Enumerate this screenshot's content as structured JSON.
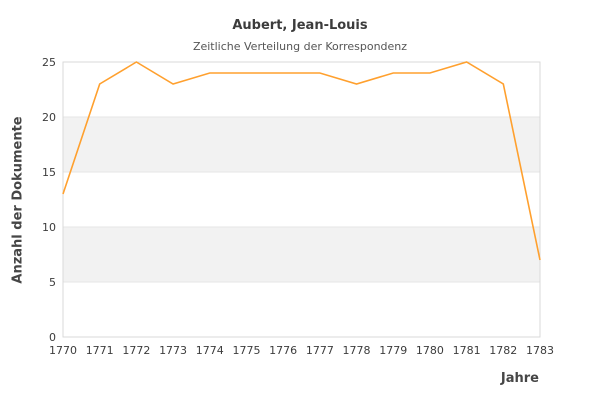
{
  "chart_data": {
    "type": "line",
    "title": "Aubert, Jean-Louis",
    "subtitle": "Zeitliche Verteilung der Korrespondenz",
    "xlabel": "Jahre",
    "ylabel": "Anzahl der Dokumente",
    "categories": [
      "1770",
      "1771",
      "1772",
      "1773",
      "1774",
      "1775",
      "1776",
      "1777",
      "1778",
      "1779",
      "1780",
      "1781",
      "1782",
      "1783"
    ],
    "values": [
      13,
      23,
      25,
      23,
      24,
      24,
      24,
      24,
      23,
      24,
      24,
      25,
      23,
      7
    ],
    "ylim": [
      0,
      25
    ],
    "yticks": [
      0,
      5,
      10,
      15,
      20,
      25
    ],
    "grid": "horizontal",
    "legend": "none",
    "band_pattern": "alternating gray bands between yticks 5-10 and 15-20",
    "colors": {
      "line": "#ffa02e",
      "band": "#f2f2f2",
      "grid": "#e6e6e6",
      "border": "#d9d9d9",
      "title": "#3c3c3c",
      "subtitle": "#555555",
      "tick": "#3c3c3c",
      "axis_title": "#464646",
      "background": "#ffffff"
    }
  }
}
